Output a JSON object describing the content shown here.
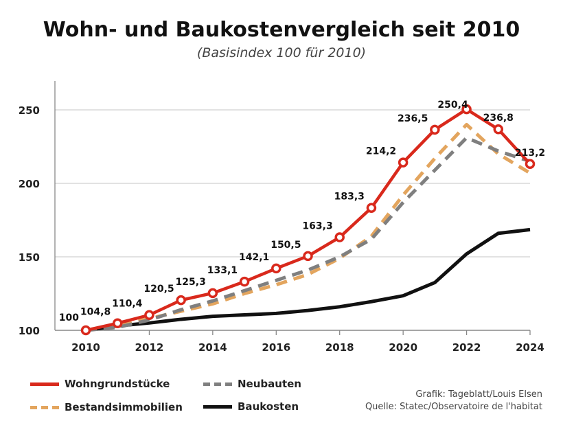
{
  "chart_data": {
    "type": "line",
    "title": "Wohn- und Baukostenvergleich seit 2010",
    "subtitle": "(Basisindex 100 für 2010)",
    "x": [
      2010,
      2011,
      2012,
      2013,
      2014,
      2015,
      2016,
      2017,
      2018,
      2019,
      2020,
      2021,
      2022,
      2023,
      2024
    ],
    "xticks": [
      2010,
      2012,
      2014,
      2016,
      2018,
      2020,
      2022,
      2024
    ],
    "yticks": [
      100,
      150,
      200,
      250
    ],
    "ylim": [
      100,
      268
    ],
    "grid": true,
    "series": [
      {
        "name": "Wohngrundstücke",
        "color": "#d9291c",
        "style": "solid-markers",
        "values": [
          100,
          104.8,
          110.4,
          120.5,
          125.3,
          133.1,
          142.1,
          150.5,
          163.3,
          183.3,
          214.2,
          236.5,
          250.4,
          236.8,
          213.2
        ],
        "labels": [
          "100",
          "104,8",
          "110,4",
          "120,5",
          "125,3",
          "133,1",
          "142,1",
          "150,5",
          "163,3",
          "183,3",
          "214,2",
          "236,5",
          "250,4",
          "236,8",
          "213,2"
        ]
      },
      {
        "name": "Neubauten",
        "color": "#7f7f7f",
        "style": "dashed",
        "values": [
          100,
          102,
          107,
          114,
          120,
          127,
          134,
          141,
          150,
          162,
          187,
          209,
          231,
          222,
          215
        ]
      },
      {
        "name": "Bestandsimmobilien",
        "color": "#e3a55e",
        "style": "dashed",
        "values": [
          100,
          103,
          108,
          113,
          118,
          125,
          131,
          138,
          149,
          164,
          192,
          217,
          240,
          220,
          207
        ]
      },
      {
        "name": "Baukosten",
        "color": "#111111",
        "style": "solid",
        "values": [
          100,
          103,
          105,
          107.5,
          109.5,
          110.5,
          111.5,
          113.5,
          116,
          119.5,
          123.5,
          132.5,
          152,
          166,
          168.5
        ]
      }
    ],
    "legend": "bottom-left"
  },
  "credits": {
    "line1": "Grafik: Tageblatt/Louis Elsen",
    "line2": "Quelle: Statec/Observatoire de l'habitat"
  }
}
